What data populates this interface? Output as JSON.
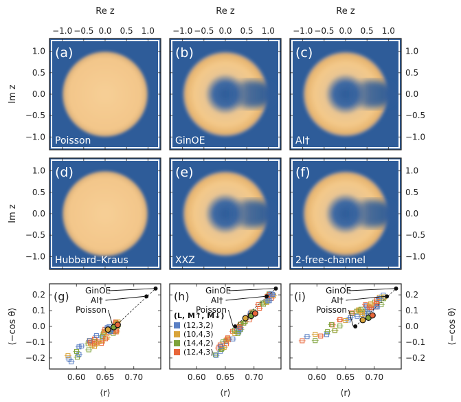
{
  "axis_labels": {
    "top": "Re z",
    "left": "Im z",
    "bottom": "⟨r⟩",
    "right_bottom": "⟨−cos θ⟩",
    "left_bottom": "⟨−cos θ⟩"
  },
  "spectra": [
    {
      "tag": "(a)",
      "name": "Poisson",
      "shape": "disk"
    },
    {
      "tag": "(b)",
      "name": "GinOE",
      "shape": "ring"
    },
    {
      "tag": "(c)",
      "name": "AI†",
      "shape": "ring"
    },
    {
      "tag": "(d)",
      "name": "Hubbard–Kraus",
      "shape": "disk"
    },
    {
      "tag": "(e)",
      "name": "XXZ",
      "shape": "ring"
    },
    {
      "tag": "(f)",
      "name": "2-free-channel",
      "shape": "ring"
    }
  ],
  "colors": {
    "heat_bg": "#2e5c99",
    "heat_peak": "#f4c98a",
    "blue": "#5a7fc4",
    "yellow": "#d9a43a",
    "green": "#7ea33b",
    "orange": "#e8663a"
  },
  "chart_data": [
    {
      "type": "heatmap",
      "panel": "(a)",
      "xlabel": "Re z",
      "ylabel": "Im z",
      "xticks": [
        "−1.0",
        "−0.5",
        "0.0",
        "0.5",
        "1.0"
      ],
      "yticks": [
        "1.0",
        "0.5",
        "0.0",
        "−0.5",
        "−1.0"
      ],
      "xlim": [
        -1.3,
        1.3
      ],
      "ylim": [
        -1.3,
        1.3
      ]
    },
    {
      "type": "scatter",
      "panels": [
        "(g)",
        "(h)",
        "(i)"
      ],
      "xlabel": "⟨r⟩",
      "ylabel": "⟨−cos θ⟩",
      "xticks": [
        "0.60",
        "0.65",
        "0.70"
      ],
      "yticks": [
        "0.2",
        "0.1",
        "0.0",
        "−0.1",
        "−0.2"
      ],
      "xlim": [
        0.553,
        0.747
      ],
      "ylim": [
        -0.27,
        0.27
      ],
      "reference_points": [
        {
          "name": "GinOE",
          "x": 0.738,
          "y": 0.24
        },
        {
          "name": "AI†",
          "x": 0.722,
          "y": 0.19
        },
        {
          "name": "Poisson",
          "x": 0.667,
          "y": 0.0
        }
      ],
      "legend": {
        "title": "(L, M↑, M↓)",
        "entries": [
          "(12,3,2)",
          "(10,4,3)",
          "(14,4,2)",
          "(12,4,3)"
        ]
      },
      "tags": [
        "(g)",
        "(h)",
        "(i)"
      ]
    }
  ]
}
